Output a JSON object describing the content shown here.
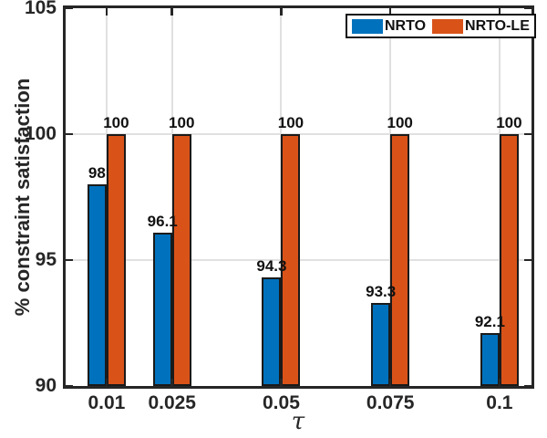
{
  "chart_data": {
    "type": "bar",
    "title": "",
    "xlabel": "τ",
    "ylabel": "% constraint satisfaction",
    "x_values": [
      0.01,
      0.025,
      0.05,
      0.075,
      0.1
    ],
    "x_tick_labels": [
      "0.01",
      "0.025",
      "0.05",
      "0.075",
      "0.1"
    ],
    "yticks": [
      90,
      95,
      100,
      105
    ],
    "y_tick_labels": [
      "90",
      "95",
      "100",
      "105"
    ],
    "ylim": [
      90,
      105
    ],
    "grid": true,
    "legend_position": "top-right",
    "series": [
      {
        "name": "NRTO",
        "color": "#0072BD",
        "values": [
          98,
          96.1,
          94.3,
          93.3,
          92.1
        ],
        "value_labels": [
          "98",
          "96.1",
          "94.3",
          "93.3",
          "92.1"
        ]
      },
      {
        "name": "NRTO-LE",
        "color": "#D95319",
        "values": [
          100,
          100,
          100,
          100,
          100
        ],
        "value_labels": [
          "100",
          "100",
          "100",
          "100",
          "100"
        ]
      }
    ]
  },
  "colors": {
    "axis": "#262626",
    "grid": "#e0e0e0",
    "bar_edge": "#1a1a1a",
    "background": "#ffffff"
  }
}
